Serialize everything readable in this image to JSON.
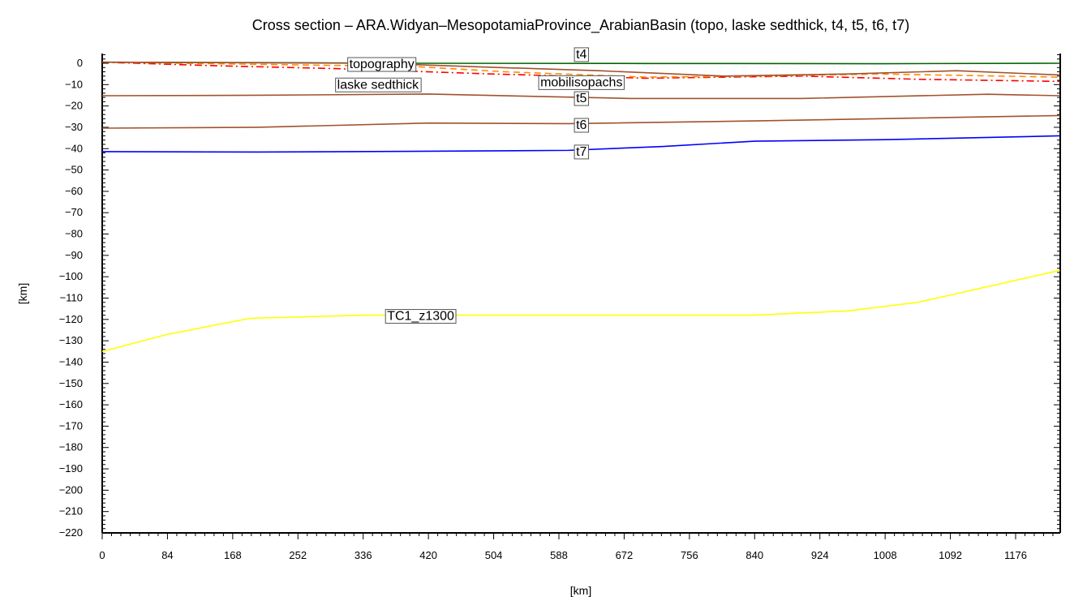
{
  "chart_data": {
    "type": "line",
    "title": "Cross section – ARA.Widyan–MesopotamiaProvince_ArabianBasin (topo, laske sedthick, t4, t5, t6, t7)",
    "xlabel": "[km]",
    "ylabel": "[km]",
    "xlim": [
      0,
      1233
    ],
    "ylim": [
      -220,
      5
    ],
    "xticks": [
      0,
      84,
      168,
      252,
      336,
      420,
      504,
      588,
      672,
      756,
      840,
      924,
      1008,
      1092,
      1176
    ],
    "yticks": [
      0,
      -10,
      -20,
      -30,
      -40,
      -50,
      -60,
      -70,
      -80,
      -90,
      -100,
      -110,
      -120,
      -130,
      -140,
      -150,
      -160,
      -170,
      -180,
      -190,
      -200,
      -210,
      -220
    ],
    "grid": false,
    "series": [
      {
        "name": "topography",
        "color": "#006400",
        "style": "solid",
        "label_x": 360,
        "label_y": 0,
        "x": [
          0,
          200,
          400,
          700,
          1000,
          1233
        ],
        "y": [
          0.5,
          0.3,
          0,
          -0.1,
          -0.2,
          0
        ]
      },
      {
        "name": "laske sedthick",
        "color": "#ff0000",
        "style": "dashdot",
        "label_x": 355,
        "label_y": -2,
        "x": [
          0,
          150,
          300,
          500,
          700,
          900,
          1050,
          1233
        ],
        "y": [
          0.5,
          -1.2,
          -2.5,
          -5,
          -7,
          -6,
          -7.5,
          -8.5
        ]
      },
      {
        "name": "mobilisopachs",
        "color": "#ff8c00",
        "style": "dashed",
        "label_x": 617,
        "label_y": -8.5,
        "x": [
          0,
          400,
          520,
          700,
          850,
          1000,
          1233
        ],
        "y": [
          0.5,
          -1.5,
          -4,
          -6.5,
          -6,
          -5,
          -6.5
        ]
      },
      {
        "name": "t4",
        "color": "#a0522d",
        "style": "solid",
        "label_x": 617,
        "label_y": -3,
        "x": [
          0,
          350,
          470,
          640,
          800,
          960,
          1100,
          1233
        ],
        "y": [
          0.5,
          0,
          -1.5,
          -3.5,
          -6,
          -5,
          -3.5,
          -5.5
        ]
      },
      {
        "name": "t5",
        "color": "#a0522d",
        "style": "solid",
        "label_x": 617,
        "label_y": -16,
        "x": [
          0,
          200,
          420,
          680,
          900,
          1140,
          1233
        ],
        "y": [
          -15.2,
          -15,
          -14.4,
          -16.5,
          -16.5,
          -14.5,
          -15.2
        ]
      },
      {
        "name": "t6",
        "color": "#a0522d",
        "style": "solid",
        "label_x": 617,
        "label_y": -28.5,
        "x": [
          0,
          200,
          420,
          600,
          840,
          1233
        ],
        "y": [
          -30.4,
          -30,
          -28,
          -28.3,
          -27,
          -24.5
        ]
      },
      {
        "name": "t7",
        "color": "#0000ff",
        "style": "solid",
        "label_x": 617,
        "label_y": -41,
        "x": [
          0,
          200,
          420,
          600,
          720,
          840,
          1008,
          1233
        ],
        "y": [
          -41.4,
          -41.6,
          -41.2,
          -40.8,
          -39,
          -36.5,
          -35.8,
          -34
        ]
      },
      {
        "name": "TC1_z1300",
        "color": "#ffff00",
        "style": "solid",
        "label_x": 410,
        "label_y": -118,
        "x": [
          0,
          84,
          190,
          336,
          840,
          960,
          1050,
          1233
        ],
        "y": [
          -135,
          -127,
          -119.5,
          -118,
          -118,
          -116,
          -112,
          -97
        ]
      }
    ]
  }
}
